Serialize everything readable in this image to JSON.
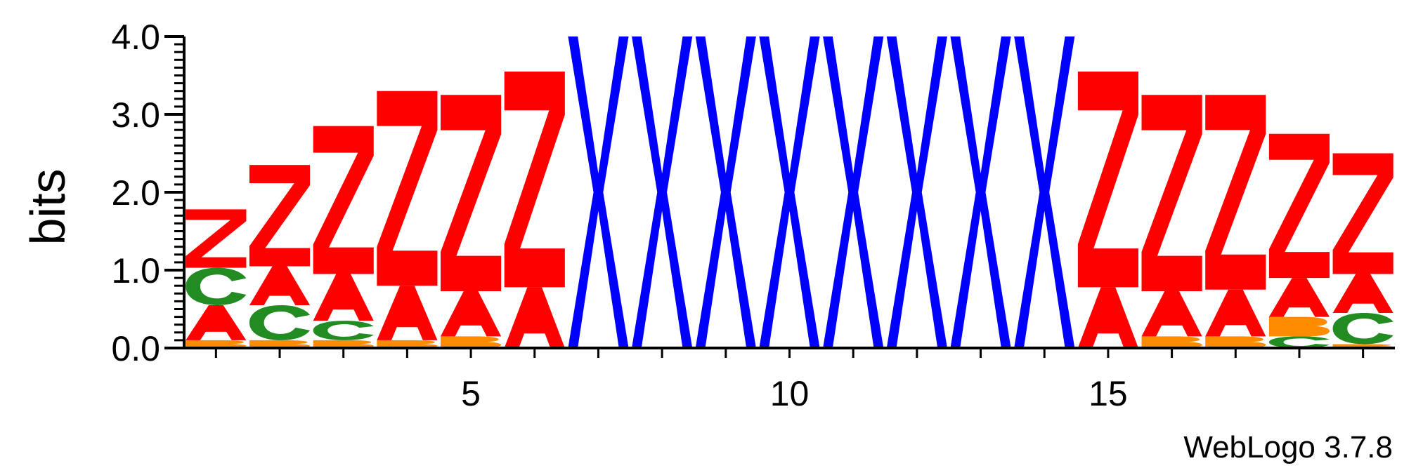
{
  "chart_data": {
    "type": "sequence-logo",
    "ylabel": "bits",
    "ylim": [
      0,
      4.0
    ],
    "yticks": [
      "0.0",
      "1.0",
      "2.0",
      "3.0",
      "4.0"
    ],
    "xticks": [
      5,
      10,
      15
    ],
    "num_positions": 19,
    "colors": {
      "Z": "#ff0000",
      "A": "#ff0000",
      "X": "#0000ff",
      "C": "#228b22",
      "B": "#ff8c00"
    },
    "positions": [
      {
        "pos": 1,
        "letters": [
          {
            "c": "B",
            "h": 0.1
          },
          {
            "c": "A",
            "h": 0.45
          },
          {
            "c": "C",
            "h": 0.48
          },
          {
            "c": "Z",
            "h": 0.75
          }
        ]
      },
      {
        "pos": 2,
        "letters": [
          {
            "c": "B",
            "h": 0.1
          },
          {
            "c": "C",
            "h": 0.45
          },
          {
            "c": "A",
            "h": 0.5
          },
          {
            "c": "Z",
            "h": 1.3
          }
        ]
      },
      {
        "pos": 3,
        "letters": [
          {
            "c": "B",
            "h": 0.1
          },
          {
            "c": "C",
            "h": 0.25
          },
          {
            "c": "A",
            "h": 0.6
          },
          {
            "c": "Z",
            "h": 1.9
          }
        ]
      },
      {
        "pos": 4,
        "letters": [
          {
            "c": "B",
            "h": 0.1
          },
          {
            "c": "A",
            "h": 0.7
          },
          {
            "c": "Z",
            "h": 2.5
          }
        ]
      },
      {
        "pos": 5,
        "letters": [
          {
            "c": "B",
            "h": 0.15
          },
          {
            "c": "A",
            "h": 0.58
          },
          {
            "c": "Z",
            "h": 2.52
          }
        ]
      },
      {
        "pos": 6,
        "letters": [
          {
            "c": "A",
            "h": 0.78
          },
          {
            "c": "Z",
            "h": 2.77
          }
        ]
      },
      {
        "pos": 7,
        "letters": [
          {
            "c": "X",
            "h": 4.0
          }
        ]
      },
      {
        "pos": 8,
        "letters": [
          {
            "c": "X",
            "h": 4.0
          }
        ]
      },
      {
        "pos": 9,
        "letters": [
          {
            "c": "X",
            "h": 4.0
          }
        ]
      },
      {
        "pos": 10,
        "letters": [
          {
            "c": "X",
            "h": 4.0
          }
        ]
      },
      {
        "pos": 11,
        "letters": [
          {
            "c": "X",
            "h": 4.0
          }
        ]
      },
      {
        "pos": 12,
        "letters": [
          {
            "c": "X",
            "h": 4.0
          }
        ]
      },
      {
        "pos": 13,
        "letters": [
          {
            "c": "X",
            "h": 4.0
          }
        ]
      },
      {
        "pos": 14,
        "letters": [
          {
            "c": "X",
            "h": 4.0
          }
        ]
      },
      {
        "pos": 15,
        "letters": [
          {
            "c": "A",
            "h": 0.78
          },
          {
            "c": "Z",
            "h": 2.77
          }
        ]
      },
      {
        "pos": 16,
        "letters": [
          {
            "c": "B",
            "h": 0.15
          },
          {
            "c": "A",
            "h": 0.58
          },
          {
            "c": "Z",
            "h": 2.52
          }
        ]
      },
      {
        "pos": 17,
        "letters": [
          {
            "c": "B",
            "h": 0.15
          },
          {
            "c": "A",
            "h": 0.6
          },
          {
            "c": "Z",
            "h": 2.5
          }
        ]
      },
      {
        "pos": 18,
        "letters": [
          {
            "c": "C",
            "h": 0.15
          },
          {
            "c": "B",
            "h": 0.25
          },
          {
            "c": "A",
            "h": 0.5
          },
          {
            "c": "Z",
            "h": 1.85
          }
        ]
      },
      {
        "pos": 19,
        "letters": [
          {
            "c": "B",
            "h": 0.05
          },
          {
            "c": "C",
            "h": 0.4
          },
          {
            "c": "A",
            "h": 0.5
          },
          {
            "c": "Z",
            "h": 1.55
          }
        ]
      }
    ]
  },
  "credit": "WebLogo 3.7.8"
}
